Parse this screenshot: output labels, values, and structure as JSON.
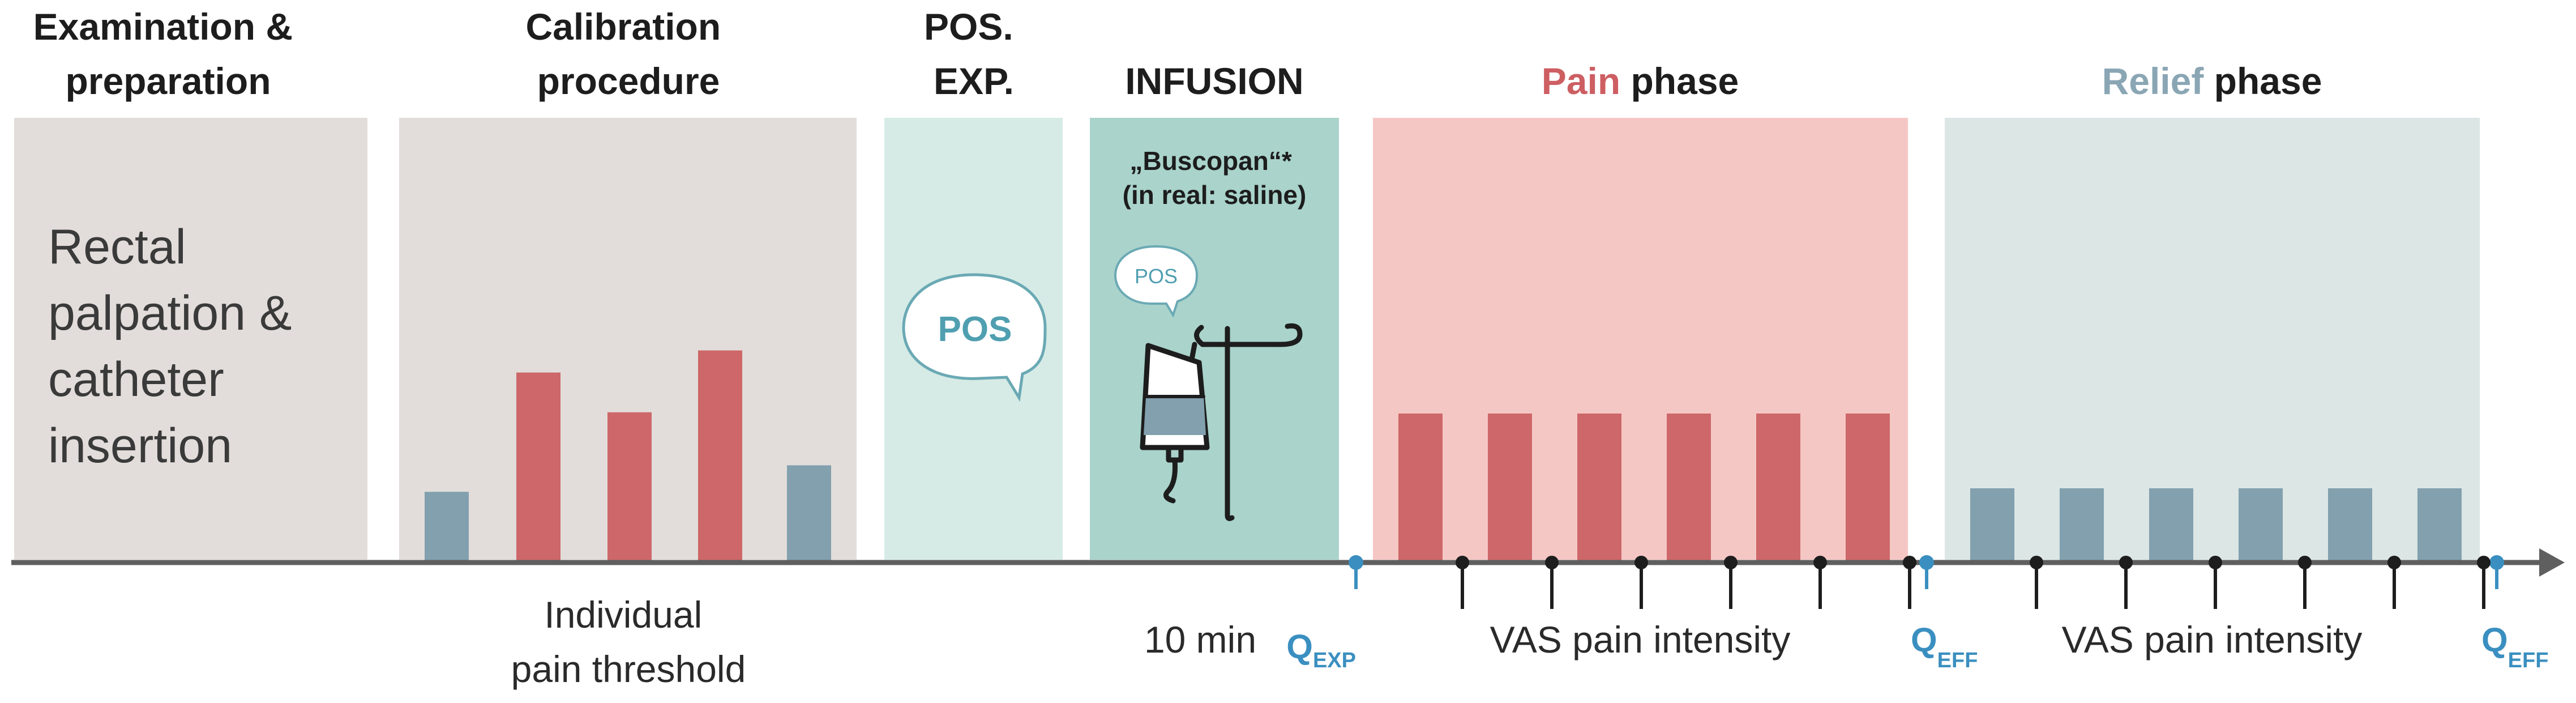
{
  "phases": [
    {
      "title_lines": [
        "Examination &",
        "preparation"
      ],
      "body_lines": [
        "Rectal",
        "palpation &",
        "catheter",
        "insertion"
      ]
    },
    {
      "title_lines": [
        "Calibration",
        "procedure"
      ],
      "below_lines": [
        "Individual",
        "pain threshold"
      ]
    },
    {
      "title_lines": [
        "POS.",
        "EXP."
      ],
      "bubble": "POS"
    },
    {
      "title_lines": [
        "INFUSION"
      ],
      "note_lines": [
        "„Buscopan“*",
        "(in real: saline)"
      ],
      "bubble": "POS",
      "below": "10 min"
    },
    {
      "title_colored": "Pain",
      "title_rest": " phase",
      "below": "VAS pain intensity"
    },
    {
      "title_colored": "Relief",
      "title_rest": " phase",
      "below": "VAS pain intensity"
    }
  ],
  "markers": [
    {
      "main": "Q",
      "sub": "EXP"
    },
    {
      "main": "Q",
      "sub": "EFF"
    },
    {
      "main": "Q",
      "sub": "EFF"
    }
  ],
  "calibration_bars": [
    {
      "level": 0.16,
      "kind": "low"
    },
    {
      "level": 0.43,
      "kind": "high"
    },
    {
      "level": 0.34,
      "kind": "high"
    },
    {
      "level": 0.48,
      "kind": "high"
    },
    {
      "level": 0.22,
      "kind": "low"
    }
  ],
  "pain_bar_count": 6,
  "relief_bar_count": 6,
  "colors": {
    "neutral_bg": "#e2ddda",
    "pos_bg": "#d6ebe6",
    "infusion_bg": "#a9d3cb",
    "pain_bg": "#f5c7c4",
    "relief_bg": "#dbe6e5",
    "pain_bar": "#cd6769",
    "relief_bar": "#82a0ae",
    "pain_text": "#cd5e62",
    "relief_text": "#8aa6b4",
    "marker_blue": "#3a8fc0",
    "axis": "#5f5f5f",
    "bubble_text": "#4f9fb0"
  }
}
